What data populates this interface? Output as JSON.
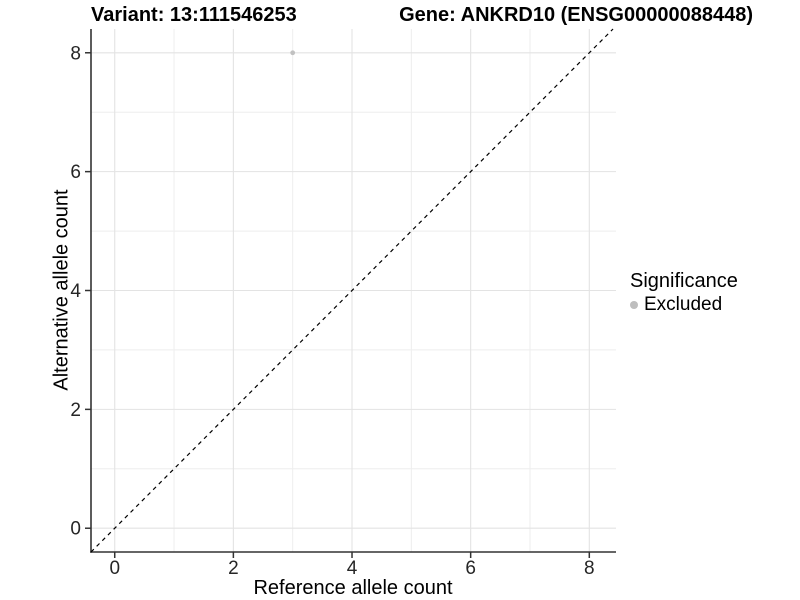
{
  "titles": {
    "left": "Variant: 13:111546253",
    "right": "Gene: ANKRD10 (ENSG00000088448)"
  },
  "chart_data": {
    "type": "scatter",
    "title": "Variant: 13:111546253   Gene: ANKRD10 (ENSG00000088448)",
    "xlabel": "Reference allele count",
    "ylabel": "Alternative allele count",
    "xlim": [
      -0.4,
      8.45
    ],
    "ylim": [
      -0.4,
      8.4
    ],
    "x_ticks": [
      0,
      2,
      4,
      6,
      8
    ],
    "y_ticks": [
      0,
      2,
      4,
      6,
      8
    ],
    "x_minor_ticks": [
      1,
      3,
      5,
      7
    ],
    "y_minor_ticks": [
      1,
      3,
      5,
      7
    ],
    "grid": "on",
    "points": [
      {
        "x": 3,
        "y": 8,
        "series": "Excluded"
      }
    ],
    "diagonal_line": {
      "slope": 1,
      "intercept": 0,
      "style": "dashed"
    },
    "legend": {
      "title": "Significance",
      "position": "right",
      "items": [
        {
          "label": "Excluded",
          "color": "#bebebe"
        }
      ]
    },
    "colors": {
      "point": "#c1c1c1",
      "grid_major": "#e3e3e3",
      "grid_minor": "#eeeeee",
      "axis": "#333333",
      "tick_label": "#262626",
      "diagonal": "#000000"
    }
  }
}
